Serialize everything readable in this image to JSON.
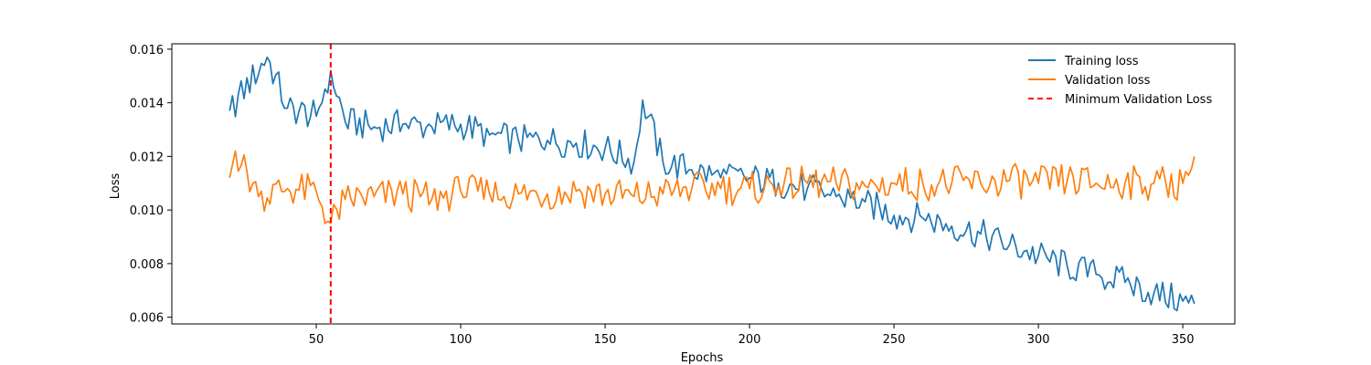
{
  "chart_data": {
    "type": "line",
    "title": "",
    "xlabel": "Epochs",
    "ylabel": "Loss",
    "xlim": [
      0.0,
      368.0
    ],
    "ylim": [
      0.00575,
      0.0162
    ],
    "xticks": [
      50,
      100,
      150,
      200,
      250,
      300,
      350
    ],
    "yticks": [
      0.006,
      0.008,
      0.01,
      0.012,
      0.014,
      0.016
    ],
    "ytick_labels": [
      "0.006",
      "0.008",
      "0.010",
      "0.012",
      "0.014",
      "0.016"
    ],
    "grid": false,
    "legend_position": "top-right",
    "legend": [
      {
        "label": "Training loss",
        "color": "#1f77b4",
        "style": "solid"
      },
      {
        "label": "Validation loss",
        "color": "#ff7f0e",
        "style": "solid"
      },
      {
        "label": "Minimum Validation Loss",
        "color": "#ff0000",
        "style": "dashed"
      }
    ],
    "min_val_epoch": 55,
    "series": [
      {
        "name": "Training loss",
        "color": "#1f77b4",
        "x": [
          20,
          33,
          40,
          50,
          55,
          60,
          70,
          80,
          90,
          100,
          110,
          120,
          130,
          140,
          150,
          160,
          163,
          170,
          180,
          190,
          200,
          210,
          220,
          230,
          240,
          250,
          260,
          270,
          280,
          290,
          300,
          310,
          320,
          330,
          340,
          350,
          354
        ],
        "y": [
          0.0137,
          0.0157,
          0.0138,
          0.0135,
          0.0152,
          0.0133,
          0.0131,
          0.0132,
          0.0131,
          0.0132,
          0.0128,
          0.0126,
          0.0126,
          0.0125,
          0.0123,
          0.0118,
          0.0141,
          0.0118,
          0.0115,
          0.0112,
          0.0112,
          0.011,
          0.0108,
          0.0105,
          0.0103,
          0.0098,
          0.0097,
          0.0094,
          0.0091,
          0.0087,
          0.0083,
          0.0079,
          0.0076,
          0.0073,
          0.0069,
          0.0066,
          0.0065
        ]
      },
      {
        "name": "Validation loss",
        "color": "#ff7f0e",
        "x": [
          20,
          22,
          30,
          40,
          50,
          55,
          60,
          70,
          80,
          90,
          100,
          110,
          120,
          130,
          140,
          150,
          160,
          170,
          180,
          190,
          200,
          210,
          220,
          230,
          240,
          250,
          260,
          270,
          280,
          290,
          300,
          310,
          320,
          330,
          340,
          350,
          354
        ],
        "y": [
          0.0112,
          0.0122,
          0.0105,
          0.0108,
          0.0107,
          0.0095,
          0.0104,
          0.0105,
          0.0106,
          0.0104,
          0.0107,
          0.0106,
          0.0106,
          0.0106,
          0.0107,
          0.0106,
          0.0105,
          0.0106,
          0.0108,
          0.0108,
          0.0108,
          0.0109,
          0.011,
          0.011,
          0.0109,
          0.011,
          0.011,
          0.011,
          0.011,
          0.0111,
          0.011,
          0.0111,
          0.011,
          0.011,
          0.011,
          0.011,
          0.012
        ]
      }
    ]
  }
}
